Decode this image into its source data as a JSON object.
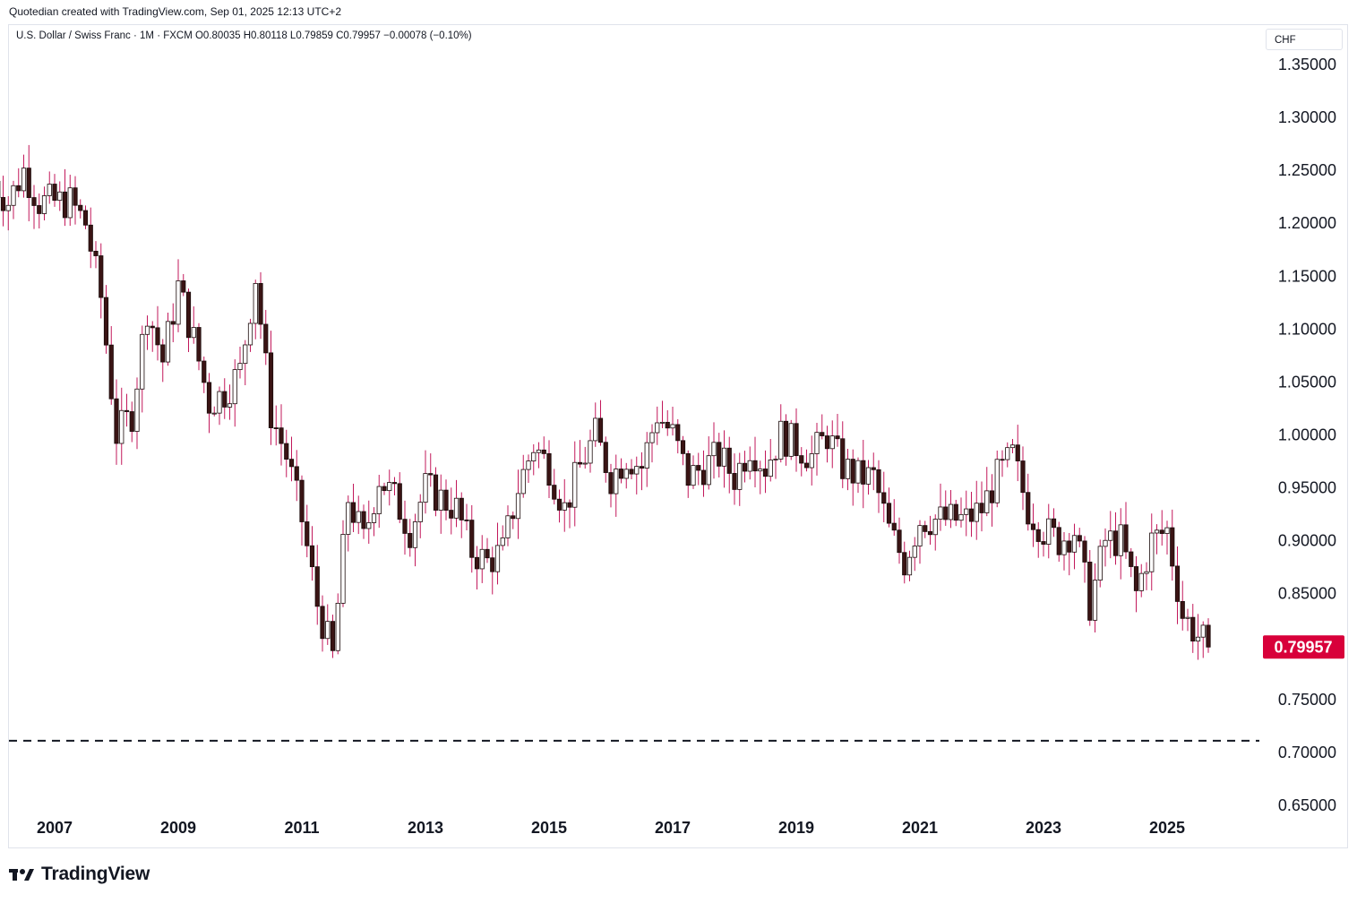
{
  "caption": "Quotedian created with TradingView.com, Sep 01, 2025 12:13 UTC+2",
  "legend": "U.S. Dollar / Swiss Franc · 1M · FXCM  O0.80035  H0.80118  L0.79859  C0.79957  −0.00078 (−0.10%)",
  "currency": "CHF",
  "brand": "TradingView",
  "colors": {
    "up_body": "#ffffff",
    "down_body": "#3a1414",
    "wick": "#c2185b",
    "last_label": "#d8003a",
    "axis_text": "#131722",
    "dashed_line": "#131722"
  },
  "chart_data": {
    "type": "candlestick",
    "title": "",
    "symbol": "U.S. Dollar / Swiss Franc",
    "interval": "1M",
    "ylim": [
      0.65,
      1.35
    ],
    "y_ticks": [
      1.35,
      1.3,
      1.25,
      1.2,
      1.15,
      1.1,
      1.05,
      1.0,
      0.95,
      0.9,
      0.85,
      0.8,
      0.75,
      0.7,
      0.65
    ],
    "y_tick_labels": [
      "1.35000",
      "1.30000",
      "1.25000",
      "1.20000",
      "1.15000",
      "1.10000",
      "1.05000",
      "1.00000",
      "0.95000",
      "0.90000",
      "0.85000",
      "",
      "0.75000",
      "0.70000",
      "0.65000"
    ],
    "x_tick_labels": [
      "2007",
      "2009",
      "2011",
      "2013",
      "2015",
      "2017",
      "2019",
      "2021",
      "2023",
      "2025"
    ],
    "x_tick_years": [
      2007,
      2009,
      2011,
      2013,
      2015,
      2017,
      2019,
      2021,
      2023,
      2025
    ],
    "horizontal_line": 0.711,
    "last_price": 0.79957,
    "last_price_label": "0.79957",
    "quarterly_close": [
      [
        2006.0,
        1.24
      ],
      [
        2006.25,
        1.22
      ],
      [
        2006.5,
        1.25
      ],
      [
        2006.75,
        1.22
      ],
      [
        2007.0,
        1.22
      ],
      [
        2007.25,
        1.22
      ],
      [
        2007.5,
        1.2
      ],
      [
        2007.75,
        1.13
      ],
      [
        2008.0,
        1.0
      ],
      [
        2008.25,
        1.02
      ],
      [
        2008.5,
        1.12
      ],
      [
        2008.75,
        1.07
      ],
      [
        2009.0,
        1.14
      ],
      [
        2009.25,
        1.09
      ],
      [
        2009.5,
        1.03
      ],
      [
        2009.75,
        1.04
      ],
      [
        2010.0,
        1.06
      ],
      [
        2010.25,
        1.15
      ],
      [
        2010.5,
        1.02
      ],
      [
        2010.75,
        0.98
      ],
      [
        2011.0,
        0.92
      ],
      [
        2011.25,
        0.84
      ],
      [
        2011.5,
        0.79
      ],
      [
        2011.75,
        0.94
      ],
      [
        2012.0,
        0.9
      ],
      [
        2012.25,
        0.96
      ],
      [
        2012.5,
        0.94
      ],
      [
        2012.75,
        0.91
      ],
      [
        2013.0,
        0.95
      ],
      [
        2013.25,
        0.94
      ],
      [
        2013.5,
        0.93
      ],
      [
        2013.75,
        0.89
      ],
      [
        2014.0,
        0.88
      ],
      [
        2014.25,
        0.89
      ],
      [
        2014.5,
        0.95
      ],
      [
        2014.75,
        0.99
      ],
      [
        2015.0,
        0.97
      ],
      [
        2015.25,
        0.93
      ],
      [
        2015.5,
        0.97
      ],
      [
        2015.75,
        1.0
      ],
      [
        2016.0,
        0.96
      ],
      [
        2016.25,
        0.98
      ],
      [
        2016.5,
        0.97
      ],
      [
        2016.75,
        1.02
      ],
      [
        2017.0,
        1.0
      ],
      [
        2017.25,
        0.96
      ],
      [
        2017.5,
        0.97
      ],
      [
        2017.75,
        0.98
      ],
      [
        2018.0,
        0.96
      ],
      [
        2018.25,
        0.99
      ],
      [
        2018.5,
        0.97
      ],
      [
        2018.75,
        1.0
      ],
      [
        2019.0,
        0.99
      ],
      [
        2019.25,
        0.98
      ],
      [
        2019.5,
        1.0
      ],
      [
        2019.75,
        0.97
      ],
      [
        2020.0,
        0.96
      ],
      [
        2020.25,
        0.96
      ],
      [
        2020.5,
        0.91
      ],
      [
        2020.75,
        0.88
      ],
      [
        2021.0,
        0.92
      ],
      [
        2021.25,
        0.92
      ],
      [
        2021.5,
        0.92
      ],
      [
        2021.75,
        0.92
      ],
      [
        2022.0,
        0.93
      ],
      [
        2022.25,
        0.96
      ],
      [
        2022.5,
        0.98
      ],
      [
        2022.75,
        0.93
      ],
      [
        2023.0,
        0.91
      ],
      [
        2023.25,
        0.9
      ],
      [
        2023.5,
        0.91
      ],
      [
        2023.75,
        0.84
      ],
      [
        2024.0,
        0.9
      ],
      [
        2024.25,
        0.9
      ],
      [
        2024.5,
        0.85
      ],
      [
        2024.75,
        0.9
      ],
      [
        2025.0,
        0.91
      ],
      [
        2025.25,
        0.83
      ],
      [
        2025.5,
        0.81
      ],
      [
        2025.67,
        0.8
      ]
    ]
  }
}
